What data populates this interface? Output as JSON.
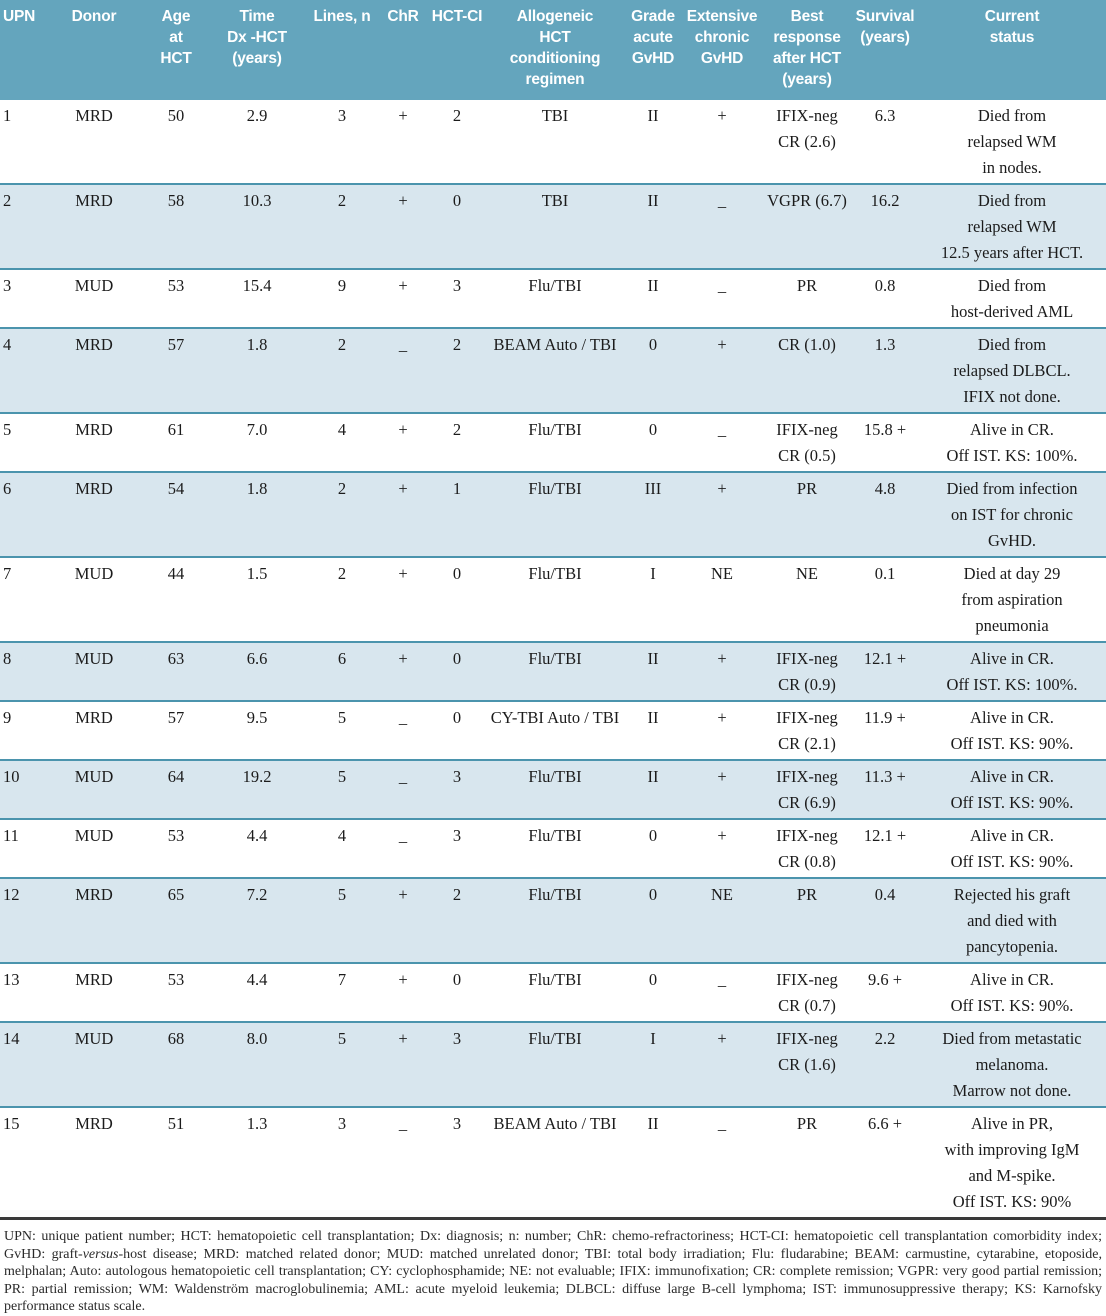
{
  "colors": {
    "header_bg": "#64a5bd",
    "stripe_bg": "#d8e6ee",
    "row_line": "#4b94ad",
    "bottom_line": "#3a3a3a"
  },
  "table": {
    "columns": [
      {
        "key": "upn",
        "label": "UPN"
      },
      {
        "key": "donor",
        "label": "Donor"
      },
      {
        "key": "age",
        "label": "Age\nat\nHCT"
      },
      {
        "key": "time",
        "label": "Time\nDx -HCT\n(years)"
      },
      {
        "key": "lines",
        "label": "Lines, n"
      },
      {
        "key": "chr",
        "label": "ChR"
      },
      {
        "key": "hctci",
        "label": "HCT-CI"
      },
      {
        "key": "regimen",
        "label": "Allogeneic\nHCT\nconditioning\nregimen"
      },
      {
        "key": "grade",
        "label": "Grade\nacute\nGvHD"
      },
      {
        "key": "chronic",
        "label": "Extensive\nchronic\nGvHD"
      },
      {
        "key": "response",
        "label": "Best\nresponse\nafter HCT\n(years)"
      },
      {
        "key": "survival",
        "label": "Survival\n(years)"
      },
      {
        "key": "status",
        "label": "Current\nstatus"
      }
    ],
    "rows": [
      {
        "upn": "1",
        "donor": "MRD",
        "age": "50",
        "time": "2.9",
        "lines": "3",
        "chr": "+",
        "hctci": "2",
        "regimen": "TBI",
        "grade": "II",
        "chronic": "+",
        "response": "IFIX-neg\nCR (2.6)",
        "survival": "6.3",
        "status": "Died from\nrelapsed WM\nin nodes."
      },
      {
        "upn": "2",
        "donor": "MRD",
        "age": "58",
        "time": "10.3",
        "lines": "2",
        "chr": "+",
        "hctci": "0",
        "regimen": "TBI",
        "grade": "II",
        "chronic": "_",
        "response": "VGPR (6.7)",
        "survival": "16.2",
        "status": "Died from\nrelapsed WM\n12.5 years after HCT."
      },
      {
        "upn": "3",
        "donor": "MUD",
        "age": "53",
        "time": "15.4",
        "lines": "9",
        "chr": "+",
        "hctci": "3",
        "regimen": "Flu/TBI",
        "grade": "II",
        "chronic": "_",
        "response": "PR",
        "survival": "0.8",
        "status": "Died from\nhost-derived AML"
      },
      {
        "upn": "4",
        "donor": "MRD",
        "age": "57",
        "time": "1.8",
        "lines": "2",
        "chr": "_",
        "hctci": "2",
        "regimen": "BEAM Auto / TBI",
        "grade": "0",
        "chronic": "+",
        "response": "CR (1.0)",
        "survival": "1.3",
        "status": "Died from\nrelapsed DLBCL.\nIFIX not done."
      },
      {
        "upn": "5",
        "donor": "MRD",
        "age": "61",
        "time": "7.0",
        "lines": "4",
        "chr": "+",
        "hctci": "2",
        "regimen": "Flu/TBI",
        "grade": "0",
        "chronic": "_",
        "response": "IFIX-neg\nCR (0.5)",
        "survival": "15.8 +",
        "status": "Alive in CR.\nOff IST. KS: 100%."
      },
      {
        "upn": "6",
        "donor": "MRD",
        "age": "54",
        "time": "1.8",
        "lines": "2",
        "chr": "+",
        "hctci": "1",
        "regimen": "Flu/TBI",
        "grade": "III",
        "chronic": "+",
        "response": "PR",
        "survival": "4.8",
        "status": "Died from infection\non IST for chronic\nGvHD."
      },
      {
        "upn": "7",
        "donor": "MUD",
        "age": "44",
        "time": "1.5",
        "lines": "2",
        "chr": "+",
        "hctci": "0",
        "regimen": "Flu/TBI",
        "grade": "I",
        "chronic": "NE",
        "response": "NE",
        "survival": "0.1",
        "status": "Died at day 29\nfrom aspiration\npneumonia"
      },
      {
        "upn": "8",
        "donor": "MUD",
        "age": "63",
        "time": "6.6",
        "lines": "6",
        "chr": "+",
        "hctci": "0",
        "regimen": "Flu/TBI",
        "grade": "II",
        "chronic": "+",
        "response": "IFIX-neg\nCR (0.9)",
        "survival": "12.1 +",
        "status": "Alive in CR.\nOff IST. KS: 100%."
      },
      {
        "upn": "9",
        "donor": "MRD",
        "age": "57",
        "time": "9.5",
        "lines": "5",
        "chr": "_",
        "hctci": "0",
        "regimen": "CY-TBI Auto / TBI",
        "grade": "II",
        "chronic": "+",
        "response": "IFIX-neg\nCR (2.1)",
        "survival": "11.9 +",
        "status": "Alive in CR.\nOff IST. KS: 90%."
      },
      {
        "upn": "10",
        "donor": "MUD",
        "age": "64",
        "time": "19.2",
        "lines": "5",
        "chr": "_",
        "hctci": "3",
        "regimen": "Flu/TBI",
        "grade": "II",
        "chronic": "+",
        "response": "IFIX-neg\nCR (6.9)",
        "survival": "11.3 +",
        "status": "Alive in CR.\nOff IST. KS: 90%."
      },
      {
        "upn": "11",
        "donor": "MUD",
        "age": "53",
        "time": "4.4",
        "lines": "4",
        "chr": "_",
        "hctci": "3",
        "regimen": "Flu/TBI",
        "grade": "0",
        "chronic": "+",
        "response": "IFIX-neg\nCR (0.8)",
        "survival": "12.1 +",
        "status": "Alive in CR.\nOff IST.  KS: 90%."
      },
      {
        "upn": "12",
        "donor": "MRD",
        "age": "65",
        "time": "7.2",
        "lines": "5",
        "chr": "+",
        "hctci": "2",
        "regimen": "Flu/TBI",
        "grade": "0",
        "chronic": "NE",
        "response": "PR",
        "survival": "0.4",
        "status": "Rejected his graft\nand died with\npancytopenia."
      },
      {
        "upn": "13",
        "donor": "MRD",
        "age": "53",
        "time": "4.4",
        "lines": "7",
        "chr": "+",
        "hctci": "0",
        "regimen": "Flu/TBI",
        "grade": "0",
        "chronic": "_",
        "response": "IFIX-neg\nCR (0.7)",
        "survival": "9.6 +",
        "status": "Alive in CR.\nOff IST. KS: 90%."
      },
      {
        "upn": "14",
        "donor": "MUD",
        "age": "68",
        "time": "8.0",
        "lines": "5",
        "chr": "+",
        "hctci": "3",
        "regimen": "Flu/TBI",
        "grade": "I",
        "chronic": "+",
        "response": "IFIX-neg\nCR (1.6)",
        "survival": "2.2",
        "status": "Died from metastatic\nmelanoma.\nMarrow not done."
      },
      {
        "upn": "15",
        "donor": "MRD",
        "age": "51",
        "time": "1.3",
        "lines": "3",
        "chr": "_",
        "hctci": "3",
        "regimen": "BEAM Auto / TBI",
        "grade": "II",
        "chronic": "_",
        "response": "PR",
        "survival": "6.6 +",
        "status": "Alive in PR,\nwith improving IgM\nand M-spike.\nOff IST. KS: 90%"
      }
    ]
  },
  "footnote": {
    "part1": "UPN: unique patient number; HCT: hematopoietic cell transplantation; Dx: diagnosis; n: number; ChR: chemo-refractoriness; HCT-CI: hematopoietic cell transplantation comorbidity index; GvHD: graft-",
    "italic": "versus",
    "part2": "-host disease; MRD: matched related donor; MUD: matched unrelated donor; TBI: total body irradiation; Flu: fludarabine; BEAM: carmustine, cytarabine, etoposide, melphalan; Auto: autologous hematopoietic cell transplantation; CY: cyclophosphamide; NE: not evaluable; IFIX: immunofixation; CR: complete remission; VGPR: very good partial remission; PR: partial remission; WM: Waldenström macroglobulinemia; AML: acute myeloid leukemia; DLBCL: diffuse large B-cell lymphoma; IST: immunosuppressive therapy; KS: Karnofsky performance status scale."
  }
}
